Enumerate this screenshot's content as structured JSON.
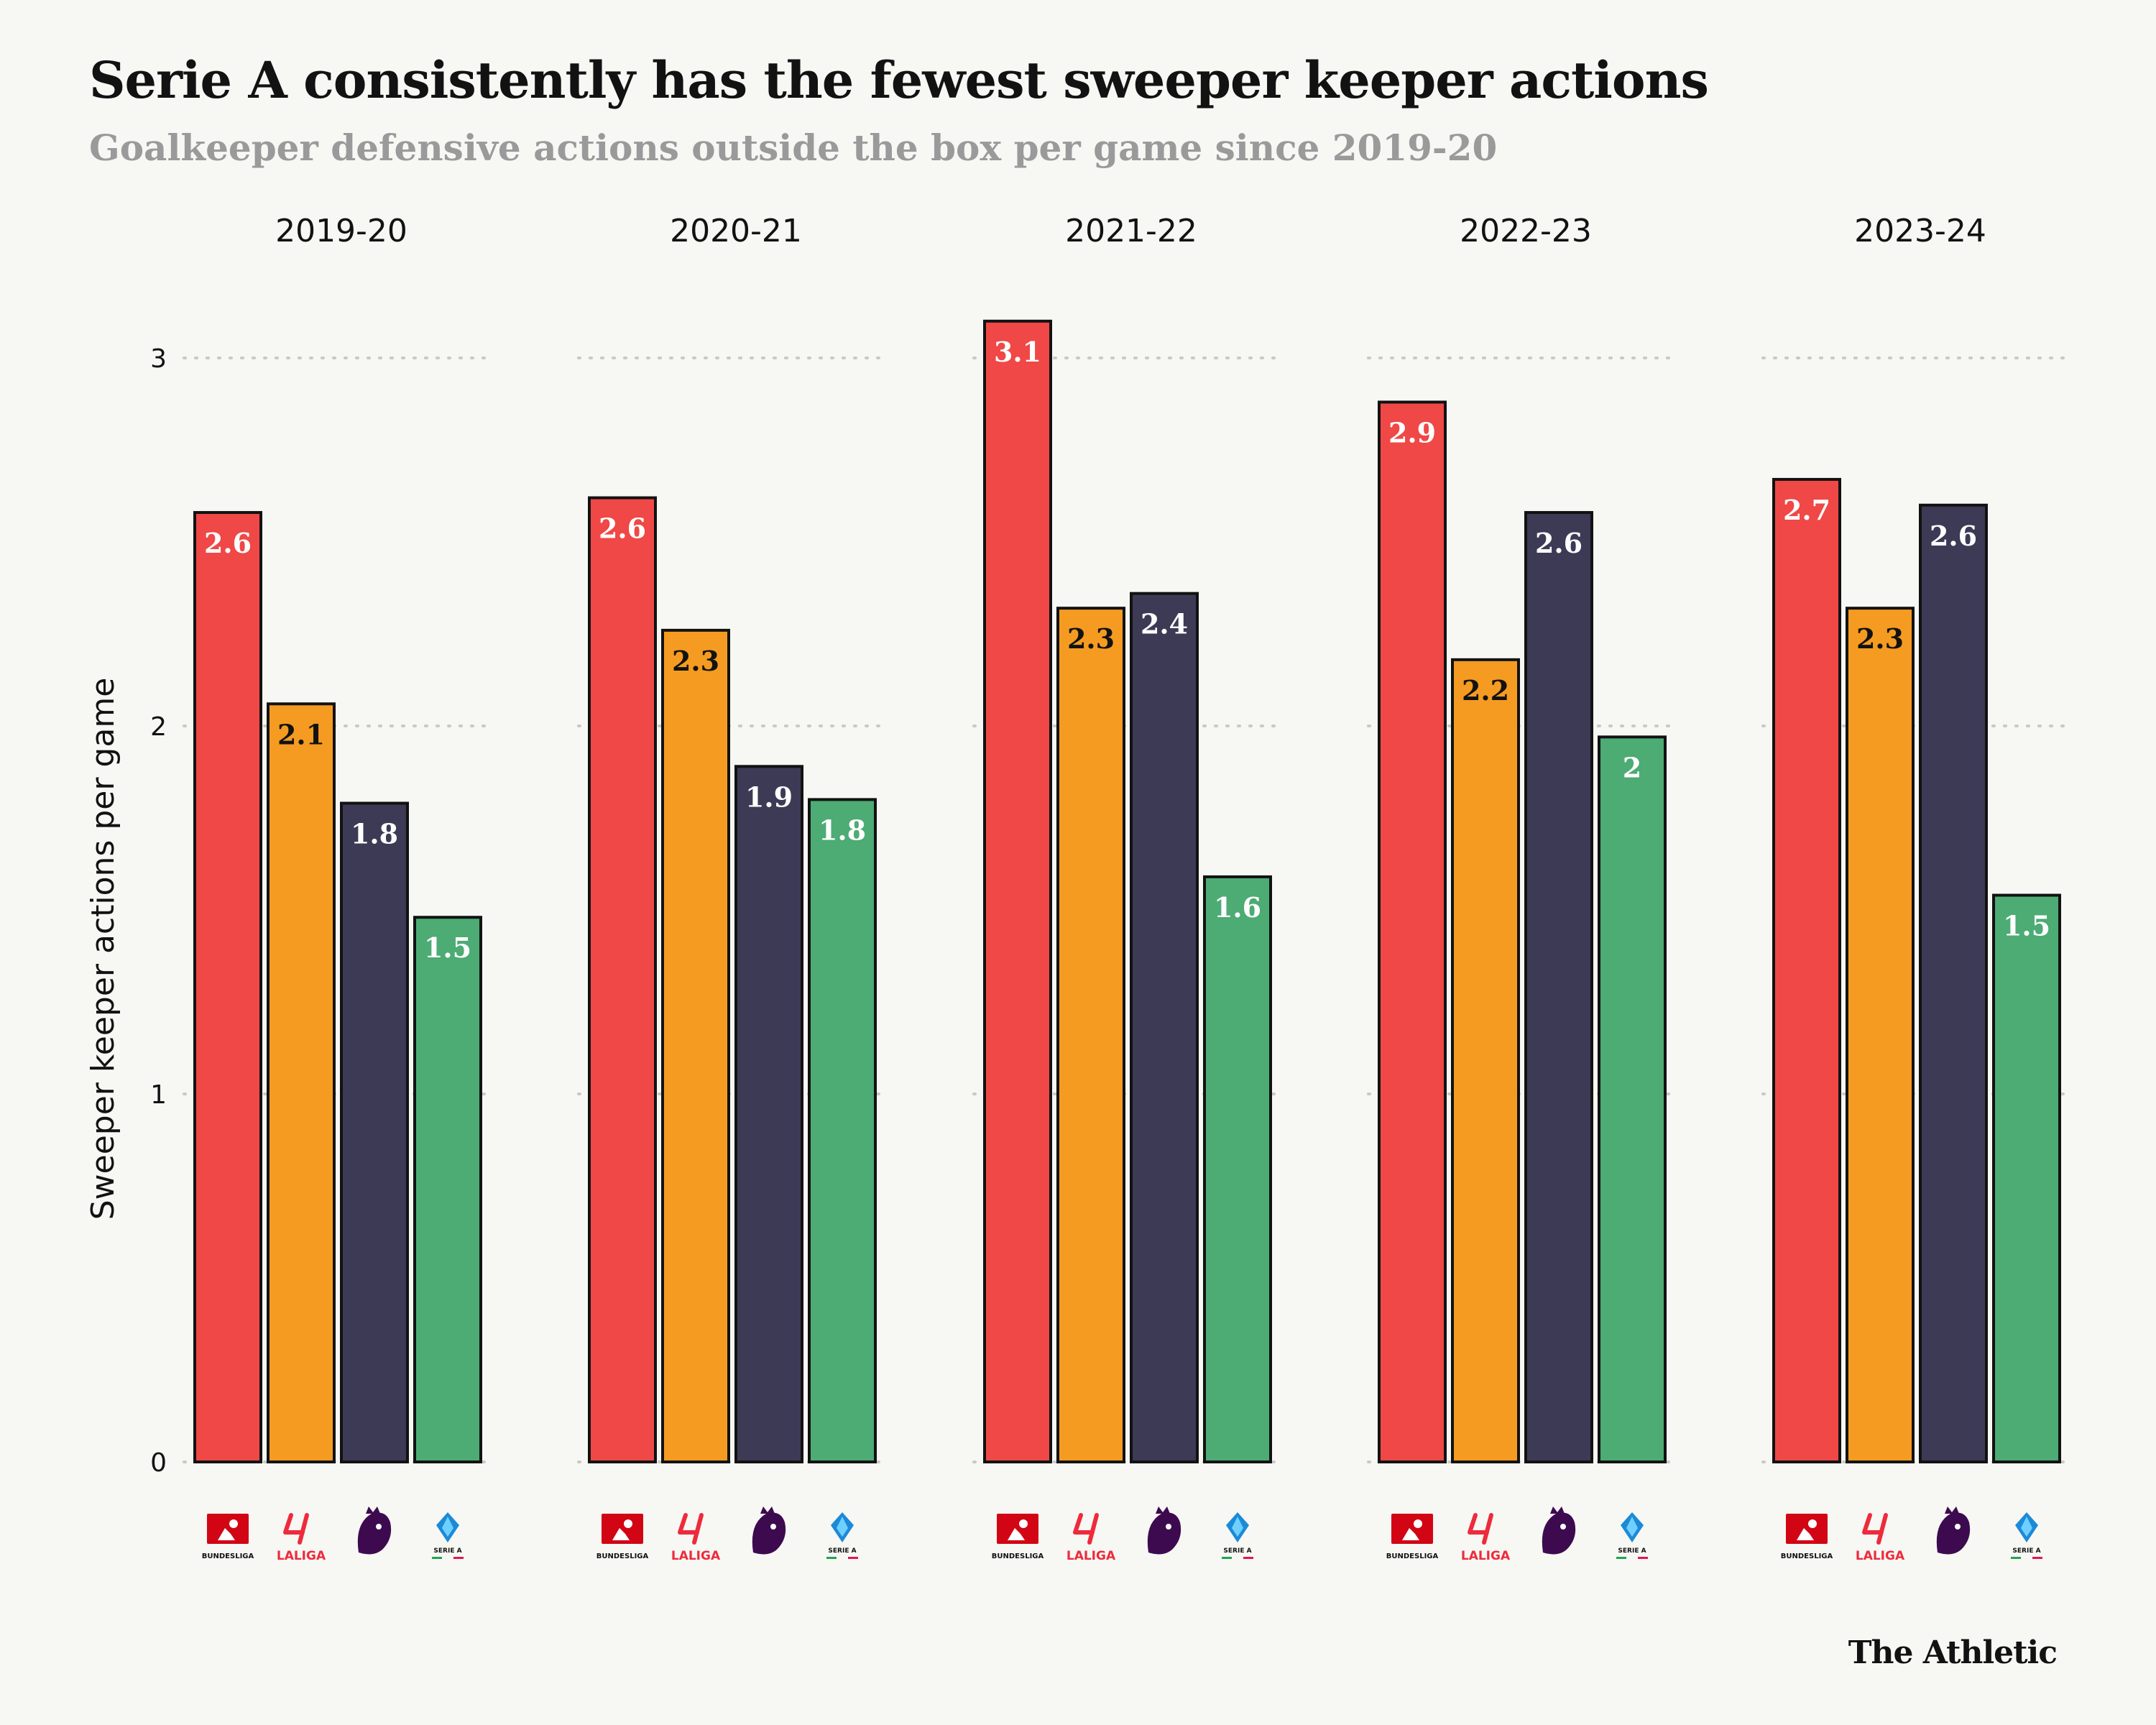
{
  "header": {
    "title": "Serie A consistently has the fewest sweeper keeper actions",
    "subtitle": "Goalkeeper defensive actions outside the box per game since 2019-20"
  },
  "brand": "The Athletic",
  "league_logos": [
    {
      "league": "Bundesliga",
      "icon": "bundesliga-logo",
      "text": "BUNDESLIGA"
    },
    {
      "league": "LaLiga",
      "icon": "laliga-logo",
      "text": "LALIGA"
    },
    {
      "league": "Premier League",
      "icon": "premier-league-logo",
      "text": ""
    },
    {
      "league": "Serie A",
      "icon": "serie-a-logo",
      "text": "SERIE A"
    }
  ],
  "chart_data": {
    "type": "bar",
    "ylabel": "Sweeper keeper actions per game",
    "ylim": [
      0,
      3.1
    ],
    "yticks": [
      0,
      1,
      2,
      3
    ],
    "grid": "horizontal dotted",
    "panels": [
      "2019-20",
      "2020-21",
      "2021-22",
      "2022-23",
      "2023-24"
    ],
    "categories": [
      "Bundesliga",
      "LaLiga",
      "Premier League",
      "Serie A"
    ],
    "colors": [
      "#ef4846",
      "#f59b21",
      "#3d3a56",
      "#4dab74"
    ],
    "label_colors": [
      "#ffffff",
      "#121212",
      "#ffffff",
      "#ffffff"
    ],
    "series": [
      {
        "panel": "2019-20",
        "values": [
          2.58,
          2.06,
          1.79,
          1.48
        ],
        "labels": [
          "2.6",
          "2.1",
          "1.8",
          "1.5"
        ]
      },
      {
        "panel": "2020-21",
        "values": [
          2.62,
          2.26,
          1.89,
          1.8
        ],
        "labels": [
          "2.6",
          "2.3",
          "1.9",
          "1.8"
        ]
      },
      {
        "panel": "2021-22",
        "values": [
          3.1,
          2.32,
          2.36,
          1.59
        ],
        "labels": [
          "3.1",
          "2.3",
          "2.4",
          "1.6"
        ]
      },
      {
        "panel": "2022-23",
        "values": [
          2.88,
          2.18,
          2.58,
          1.97
        ],
        "labels": [
          "2.9",
          "2.2",
          "2.6",
          "2"
        ]
      },
      {
        "panel": "2023-24",
        "values": [
          2.67,
          2.32,
          2.6,
          1.54
        ],
        "labels": [
          "2.7",
          "2.3",
          "2.6",
          "1.5"
        ]
      }
    ]
  }
}
